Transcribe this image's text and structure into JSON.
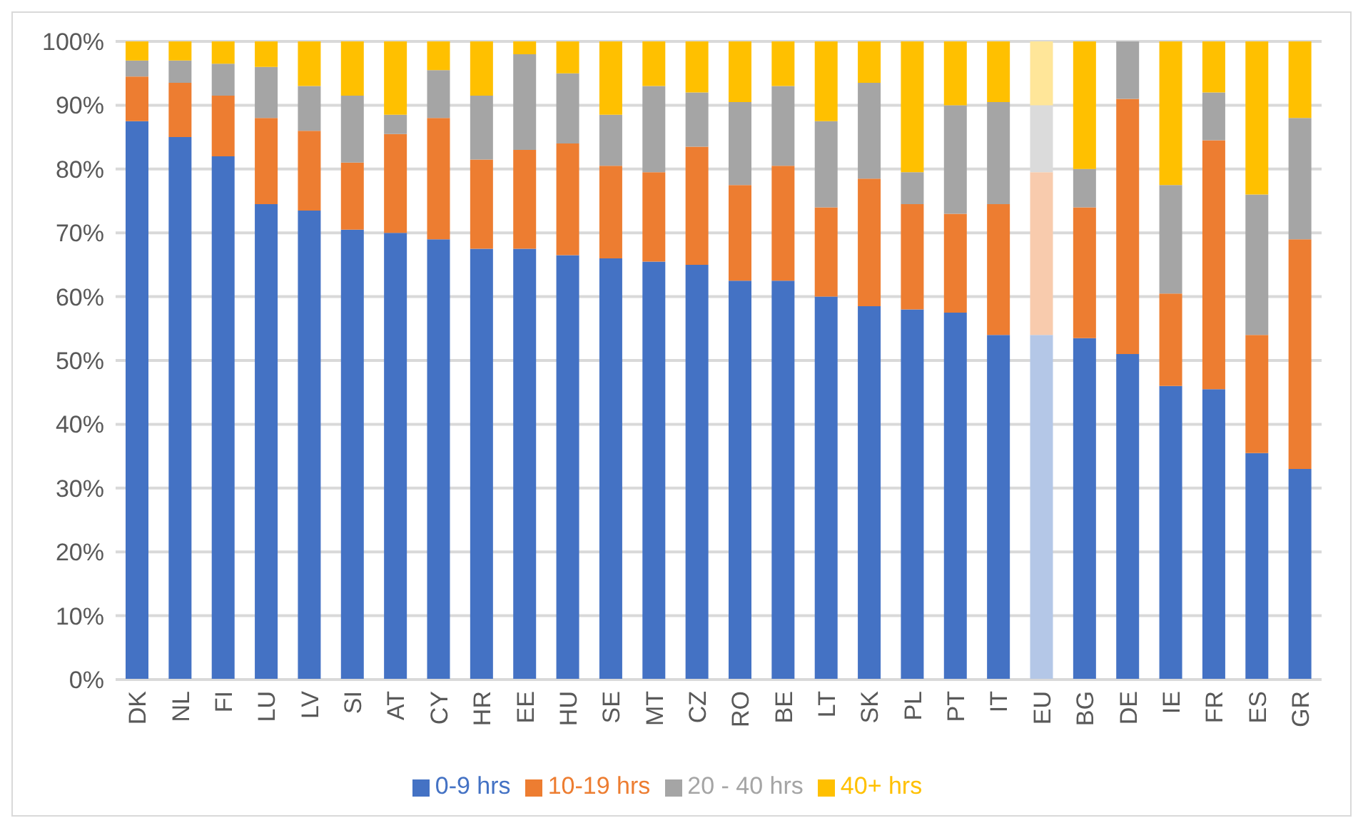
{
  "chart_data": {
    "type": "bar",
    "stacked": true,
    "categories": [
      "DK",
      "NL",
      "FI",
      "LU",
      "LV",
      "SI",
      "AT",
      "CY",
      "HR",
      "EE",
      "HU",
      "SE",
      "MT",
      "CZ",
      "RO",
      "BE",
      "LT",
      "SK",
      "PL",
      "PT",
      "IT",
      "EU",
      "BG",
      "DE",
      "IE",
      "FR",
      "ES",
      "GR"
    ],
    "series": [
      {
        "name": "0-9 hrs",
        "color": "#4472c4",
        "colors": [
          "#4472c4",
          "#4472c4",
          "#4472c4",
          "#4472c4",
          "#4472c4",
          "#4472c4",
          "#4472c4",
          "#4472c4",
          "#4472c4",
          "#4472c4",
          "#4472c4",
          "#4472c4",
          "#4472c4",
          "#4472c4",
          "#4472c4",
          "#4472c4",
          "#4472c4",
          "#4472c4",
          "#4472c4",
          "#4472c4",
          "#4472c4",
          "#b4c7e7",
          "#4472c4",
          "#4472c4",
          "#4472c4",
          "#4472c4",
          "#4472c4",
          "#4472c4"
        ],
        "values": [
          87.5,
          85,
          82,
          74.5,
          73.5,
          70.5,
          70,
          69,
          67.5,
          67.5,
          66.5,
          66,
          65.5,
          65,
          62.5,
          62.5,
          60,
          58.5,
          58,
          57.5,
          54,
          54,
          53.5,
          51,
          46,
          45.5,
          35.5,
          33
        ]
      },
      {
        "name": "10-19 hrs",
        "color": "#ed7d31",
        "colors": [
          "#ed7d31",
          "#ed7d31",
          "#ed7d31",
          "#ed7d31",
          "#ed7d31",
          "#ed7d31",
          "#ed7d31",
          "#ed7d31",
          "#ed7d31",
          "#ed7d31",
          "#ed7d31",
          "#ed7d31",
          "#ed7d31",
          "#ed7d31",
          "#ed7d31",
          "#ed7d31",
          "#ed7d31",
          "#ed7d31",
          "#ed7d31",
          "#ed7d31",
          "#ed7d31",
          "#f8cbad",
          "#ed7d31",
          "#ed7d31",
          "#ed7d31",
          "#ed7d31",
          "#ed7d31",
          "#ed7d31"
        ],
        "values": [
          7,
          8.5,
          9.5,
          13.5,
          12.5,
          10.5,
          15.5,
          19,
          14,
          15.5,
          17.5,
          14.5,
          14,
          18.5,
          15,
          18,
          14,
          20,
          16.5,
          15.5,
          20.5,
          25.5,
          20.5,
          40,
          14.5,
          39,
          18.5,
          36
        ]
      },
      {
        "name": "20 - 40 hrs",
        "color": "#a5a5a5",
        "colors": [
          "#a5a5a5",
          "#a5a5a5",
          "#a5a5a5",
          "#a5a5a5",
          "#a5a5a5",
          "#a5a5a5",
          "#a5a5a5",
          "#a5a5a5",
          "#a5a5a5",
          "#a5a5a5",
          "#a5a5a5",
          "#a5a5a5",
          "#a5a5a5",
          "#a5a5a5",
          "#a5a5a5",
          "#a5a5a5",
          "#a5a5a5",
          "#a5a5a5",
          "#a5a5a5",
          "#a5a5a5",
          "#a5a5a5",
          "#dbdbdb",
          "#a5a5a5",
          "#a5a5a5",
          "#a5a5a5",
          "#a5a5a5",
          "#a5a5a5",
          "#a5a5a5"
        ],
        "values": [
          2.5,
          3.5,
          5,
          8,
          7,
          10.5,
          3,
          7.5,
          10,
          15,
          11,
          8,
          13.5,
          8.5,
          13,
          12.5,
          13.5,
          15,
          5,
          17,
          16,
          10.5,
          6,
          9,
          17,
          7.5,
          22,
          19
        ]
      },
      {
        "name": "40+ hrs",
        "color": "#ffc000",
        "colors": [
          "#ffc000",
          "#ffc000",
          "#ffc000",
          "#ffc000",
          "#ffc000",
          "#ffc000",
          "#ffc000",
          "#ffc000",
          "#ffc000",
          "#ffc000",
          "#ffc000",
          "#ffc000",
          "#ffc000",
          "#ffc000",
          "#ffc000",
          "#ffc000",
          "#ffc000",
          "#ffc000",
          "#ffc000",
          "#ffc000",
          "#ffc000",
          "#ffe699",
          "#ffc000",
          "#ffc000",
          "#ffc000",
          "#ffc000",
          "#ffc000",
          "#ffc000"
        ],
        "values": [
          3,
          3,
          3.5,
          4,
          7,
          8.5,
          11.5,
          4.5,
          8.5,
          2,
          5,
          11.5,
          7,
          8,
          9.5,
          7,
          12.5,
          6.5,
          20.5,
          10,
          9.5,
          10,
          20,
          0,
          22.5,
          8,
          24,
          12
        ]
      }
    ],
    "ylim": [
      0,
      100
    ],
    "yticks": [
      {
        "value": 0,
        "label": "0%"
      },
      {
        "value": 10,
        "label": "10%"
      },
      {
        "value": 20,
        "label": "20%"
      },
      {
        "value": 30,
        "label": "30%"
      },
      {
        "value": 40,
        "label": "40%"
      },
      {
        "value": 50,
        "label": "50%"
      },
      {
        "value": 60,
        "label": "60%"
      },
      {
        "value": 70,
        "label": "70%"
      },
      {
        "value": 80,
        "label": "80%"
      },
      {
        "value": 90,
        "label": "90%"
      },
      {
        "value": 100,
        "label": "100%"
      }
    ],
    "grid": "y",
    "legend": "bottom"
  }
}
